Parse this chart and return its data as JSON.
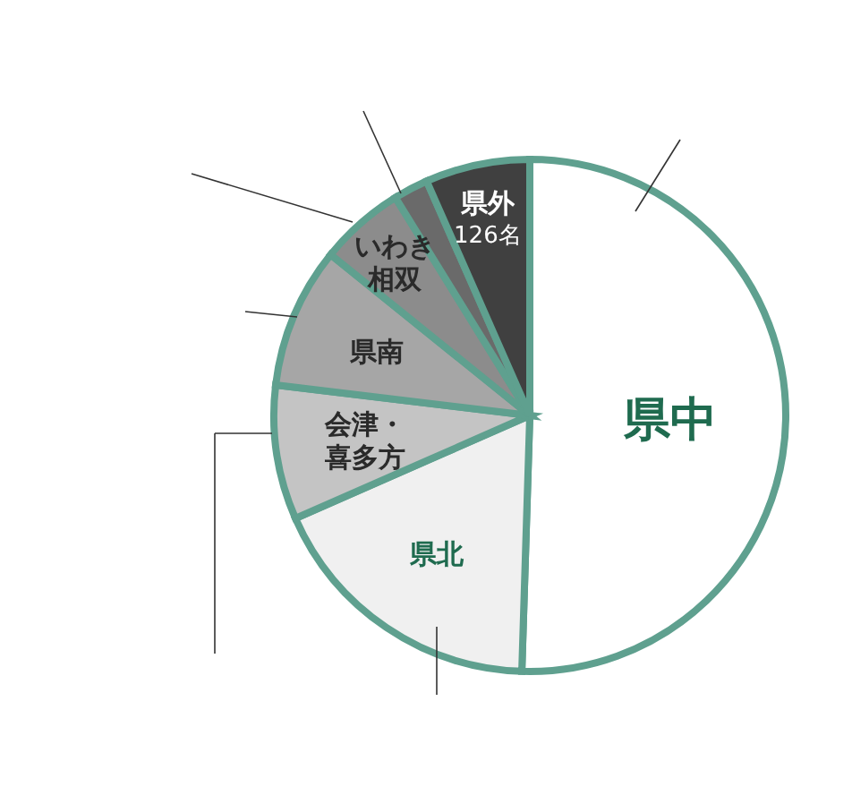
{
  "chart_data": {
    "type": "pie",
    "categories": [
      "県中",
      "県北",
      "会津・喜多方",
      "県南",
      "いわき相双",
      null,
      "県外"
    ],
    "values": [
      964,
      342,
      162,
      170,
      103,
      42,
      126
    ],
    "colors": [
      "#ffffff",
      "#f0f0f0",
      "#c4c4c4",
      "#a6a6a6",
      "#8c8c8c",
      "#6a6a6a",
      "#404040"
    ],
    "value_labels": [
      null,
      null,
      null,
      null,
      null,
      null,
      "126名"
    ]
  }
}
